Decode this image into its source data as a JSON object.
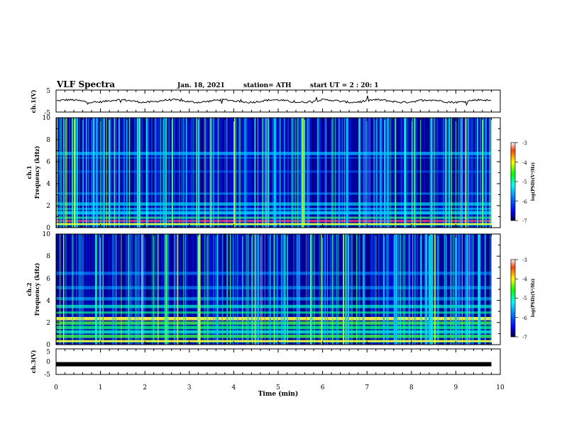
{
  "header": {
    "title": "VLF Spectra",
    "date": "Jan. 18, 2021",
    "station": "station= ATH",
    "start": "start UT = 2 : 20: 1"
  },
  "chart_data": [
    {
      "type": "line",
      "panel": "ch1-waveform",
      "ylabel": "ch.1(V)",
      "ylim": [
        -5,
        5
      ],
      "yticks": [
        "5",
        "-5"
      ],
      "xlim": [
        0,
        10
      ],
      "baseline": 0,
      "color": "#000000"
    },
    {
      "type": "heatmap",
      "panel": "ch1-spectrogram",
      "ylabel_line1": "ch.1",
      "ylabel_line2": "Frequency (kHz)",
      "ylim": [
        0,
        10
      ],
      "yticks": [
        "0",
        "2",
        "4",
        "6",
        "8",
        "10"
      ],
      "xlim": [
        0,
        10
      ],
      "data_end_min": 9.8,
      "colorbar": {
        "ticks": [
          "-3",
          "-4",
          "-5",
          "-6",
          "-7"
        ],
        "range": [
          -7,
          -3
        ],
        "label": "log(PSD)(V²/Hz)"
      }
    },
    {
      "type": "heatmap",
      "panel": "ch2-spectrogram",
      "ylabel_line1": "ch.2",
      "ylabel_line2": "Frequency (kHz)",
      "ylim": [
        0,
        10
      ],
      "yticks": [
        "0",
        "2",
        "4",
        "6",
        "8",
        "10"
      ],
      "xlim": [
        0,
        10
      ],
      "data_end_min": 9.8,
      "colorbar": {
        "ticks": [
          "-3",
          "-4",
          "-5",
          "-6",
          "-7"
        ],
        "range": [
          -7,
          -3
        ],
        "label": "log(PSD)(V²/Hz)"
      }
    },
    {
      "type": "line",
      "panel": "ch3-waveform",
      "ylabel": "ch.3(V)",
      "ylim": [
        -5,
        5
      ],
      "yticks": [
        "5",
        "0",
        "-5"
      ],
      "xlim": [
        0,
        10
      ],
      "baseline": -1,
      "color": "#000000"
    }
  ],
  "xaxis": {
    "label": "Time (min)",
    "ticks": [
      "0",
      "1",
      "2",
      "3",
      "4",
      "5",
      "6",
      "7",
      "8",
      "9",
      "10"
    ]
  }
}
